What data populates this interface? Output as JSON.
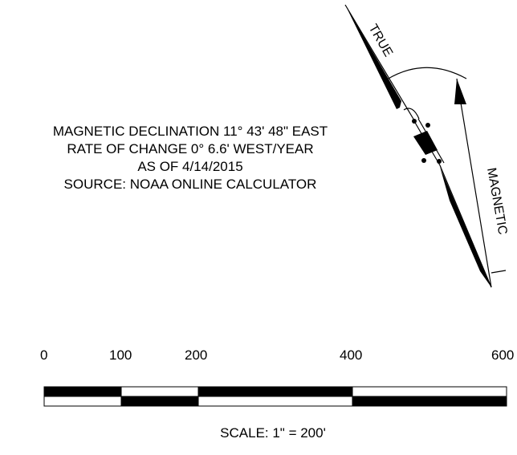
{
  "north_arrow": {
    "true_label": "TRUE",
    "magnetic_label": "MAGNETIC"
  },
  "declination_note": {
    "line1": "MAGNETIC DECLINATION 11° 43' 48\" EAST",
    "line2": "RATE OF CHANGE 0° 6.6' WEST/YEAR",
    "line3": "AS OF 4/14/2015",
    "line4": "SOURCE: NOAA ONLINE CALCULATOR"
  },
  "scale_bar": {
    "ticks": [
      "0",
      "100",
      "200",
      "400",
      "600"
    ],
    "label": "SCALE: 1\" = 200'"
  }
}
